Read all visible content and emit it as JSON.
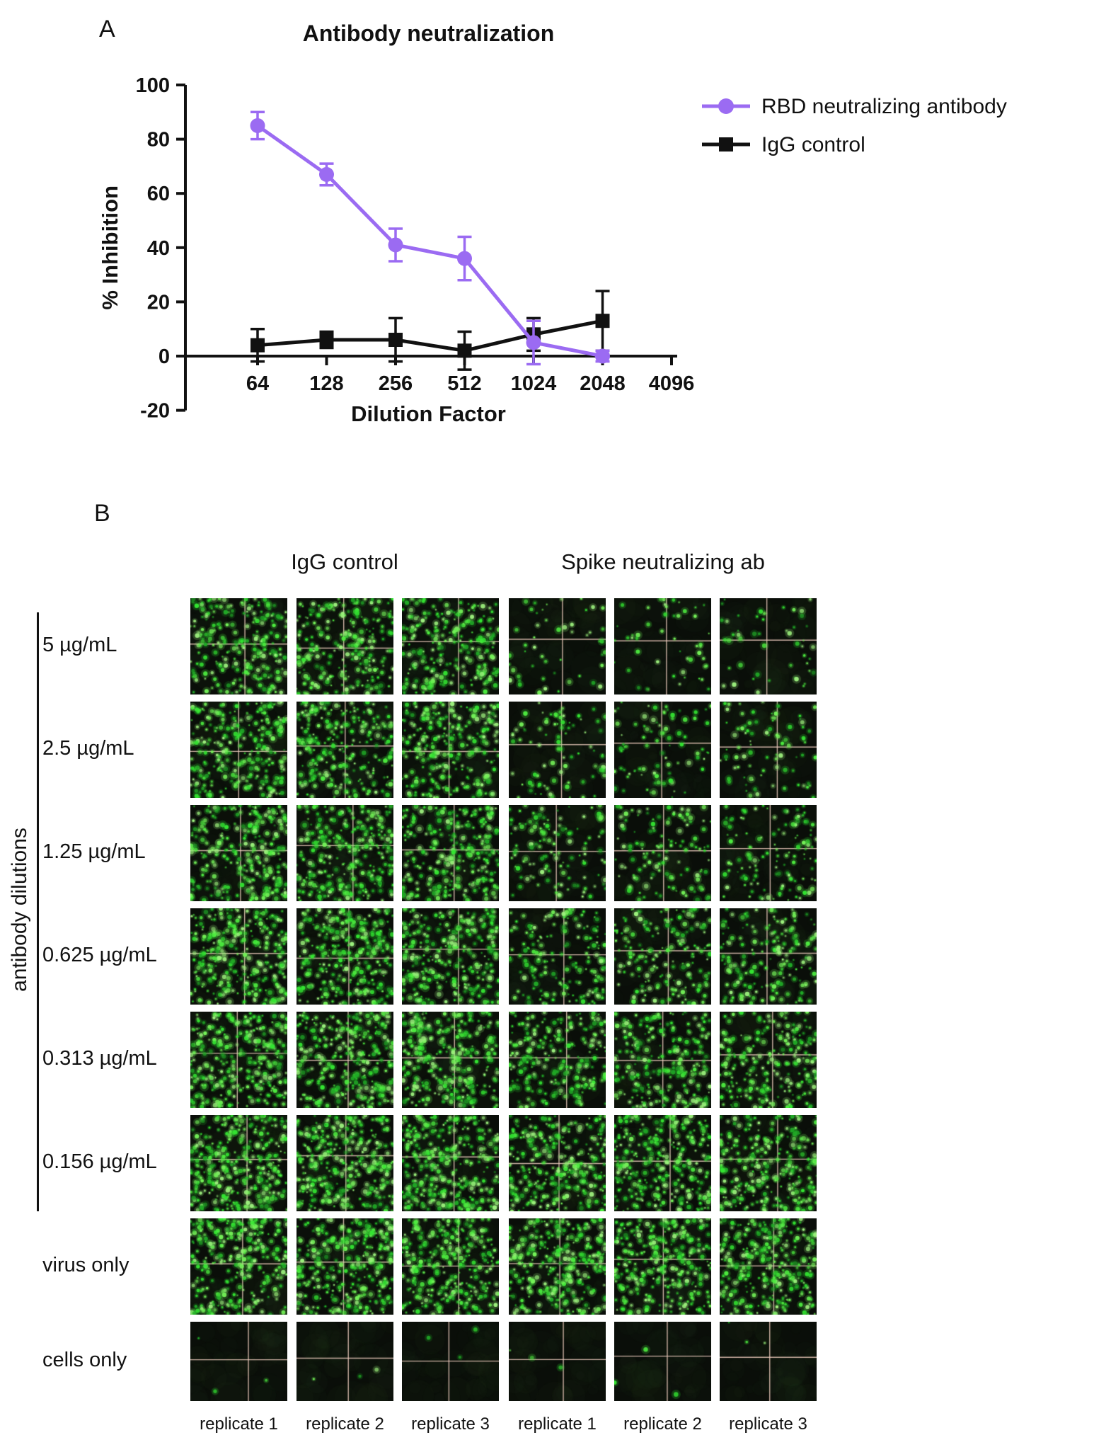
{
  "figure": {
    "panel_a_label": "A",
    "panel_b_label": "B"
  },
  "chart_data": {
    "type": "line",
    "title": "Antibody neutralization",
    "xlabel": "Dilution Factor",
    "ylabel": "% Inhibition",
    "x_scale": "log2",
    "x_ticks": [
      64,
      128,
      256,
      512,
      1024,
      2048,
      4096
    ],
    "y_ticks": [
      -20,
      0,
      20,
      40,
      60,
      80,
      100
    ],
    "ylim": [
      -20,
      100
    ],
    "grid": false,
    "legend_position": "right",
    "series": [
      {
        "name": "RBD neutralizing antibody",
        "color": "#9b6bf2",
        "marker": "circle",
        "x": [
          64,
          128,
          256,
          512,
          1024,
          2048
        ],
        "values": [
          85,
          67,
          41,
          36,
          5,
          0
        ],
        "errors": [
          5,
          4,
          6,
          8,
          8,
          2
        ]
      },
      {
        "name": "IgG control",
        "color": "#111111",
        "marker": "square",
        "x": [
          64,
          128,
          256,
          512,
          1024,
          2048
        ],
        "values": [
          4,
          6,
          6,
          2,
          8,
          13
        ],
        "errors": [
          6,
          3,
          8,
          7,
          6,
          11
        ]
      }
    ]
  },
  "panel_b": {
    "group_headers": [
      "IgG control",
      "Spike neutralizing ab"
    ],
    "side_label": "antibody dilutions",
    "replicate_labels": [
      "replicate 1",
      "replicate 2",
      "replicate 3"
    ],
    "rows": [
      {
        "label": "5 µg/mL",
        "dots_igg": 240,
        "dots_spike": 50
      },
      {
        "label": "2.5 µg/mL",
        "dots_igg": 260,
        "dots_spike": 85
      },
      {
        "label": "1.25 µg/mL",
        "dots_igg": 270,
        "dots_spike": 125
      },
      {
        "label": "0.625 µg/mL",
        "dots_igg": 285,
        "dots_spike": 175
      },
      {
        "label": "0.313  µg/mL",
        "dots_igg": 300,
        "dots_spike": 230
      },
      {
        "label": "0.156 µg/mL",
        "dots_igg": 320,
        "dots_spike": 280
      },
      {
        "label": "virus only",
        "dots_igg": 300,
        "dots_spike": 300
      },
      {
        "label": "cells only",
        "dots_igg": 3,
        "dots_spike": 3
      }
    ],
    "colors": {
      "well_background": "#0a0e09",
      "fluorescence_green": "#4deb3f",
      "grid_line_pink": "#eecdbe"
    }
  }
}
